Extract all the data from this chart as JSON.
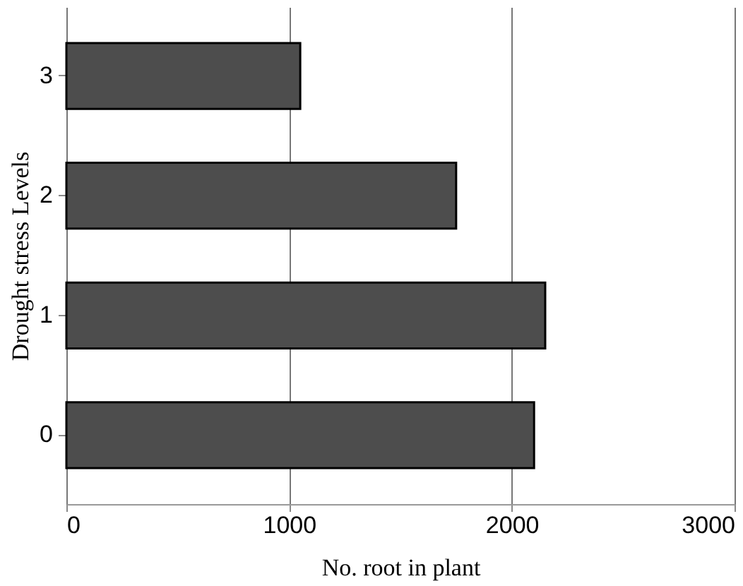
{
  "chart_data": {
    "type": "bar",
    "orientation": "horizontal",
    "xlabel": "No. root in plant",
    "ylabel": "Drought stress Levels",
    "categories": [
      "3",
      "2",
      "1",
      "0"
    ],
    "values": [
      1050,
      1750,
      2150,
      2100
    ],
    "color": "#4d4d4d",
    "xlim": [
      0,
      3000
    ],
    "xticks": [
      0,
      1000,
      2000,
      3000
    ],
    "grid": "x"
  }
}
